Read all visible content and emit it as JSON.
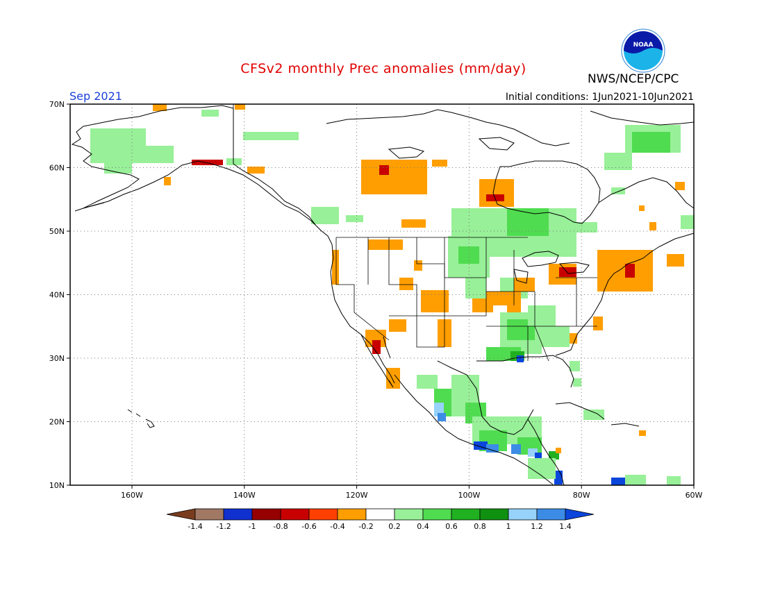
{
  "header": {
    "title": "CFSv2 monthly Prec anomalies (mm/day)",
    "agency": "NWS/NCEP/CPC",
    "period": "Sep 2021",
    "initial_conditions": "Initial conditions: 1Jun2021-10Jun2021",
    "logo_text": "NOAA"
  },
  "axes": {
    "lat_labels": [
      "70N",
      "60N",
      "50N",
      "40N",
      "30N",
      "20N",
      "10N"
    ],
    "lon_labels": [
      "160W",
      "140W",
      "120W",
      "100W",
      "80W",
      "60W"
    ]
  },
  "legend": {
    "labels": [
      "-1.4",
      "-1.2",
      "-1",
      "-0.8",
      "-0.6",
      "-0.4",
      "-0.2",
      "0.2",
      "0.4",
      "0.6",
      "0.8",
      "1",
      "1.2",
      "1.4"
    ],
    "colors": [
      "#7a3c1e",
      "#a07864",
      "#1030d0",
      "#960000",
      "#c80000",
      "#ff4000",
      "#ff9e00",
      "#ffffff",
      "#98f098",
      "#50dc50",
      "#20b020",
      "#109010",
      "#96d2fa",
      "#3c8ce6",
      "#0a46dc"
    ]
  },
  "colors": {
    "title": "#e00000",
    "period": "#1a3fd8",
    "coast": "#000000",
    "grid": "#808080"
  }
}
